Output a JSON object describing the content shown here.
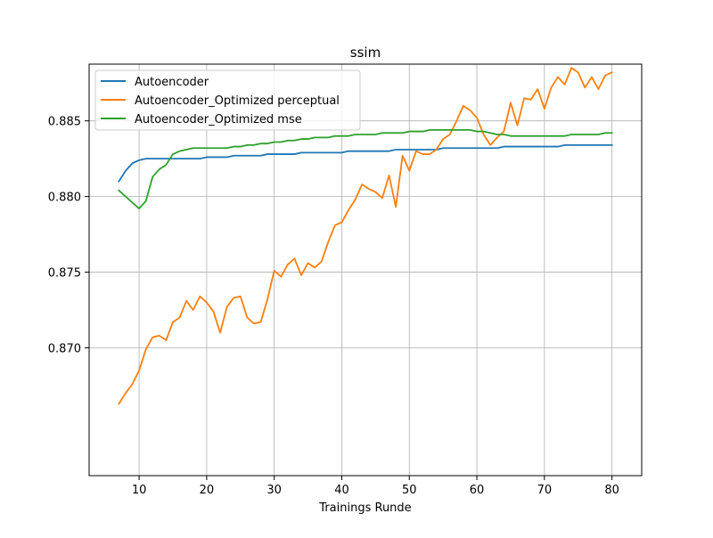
{
  "chart_data": {
    "type": "line",
    "title": "ssim",
    "xlabel": "Trainings Runde",
    "ylabel": "",
    "xlim": [
      2.6,
      84.4
    ],
    "ylim": [
      0.86155,
      0.88875
    ],
    "xticks": [
      10,
      20,
      30,
      40,
      50,
      60,
      70,
      80
    ],
    "yticks": [
      0.87,
      0.875,
      0.88,
      0.885
    ],
    "xtick_labels": [
      "10",
      "20",
      "30",
      "40",
      "50",
      "60",
      "70",
      "80"
    ],
    "ytick_labels": [
      "0.870",
      "0.875",
      "0.880",
      "0.885"
    ],
    "grid": true,
    "legend_position": "top-left",
    "x": [
      7,
      8,
      9,
      10,
      11,
      12,
      13,
      14,
      15,
      16,
      17,
      18,
      19,
      20,
      21,
      22,
      23,
      24,
      25,
      26,
      27,
      28,
      29,
      30,
      31,
      32,
      33,
      34,
      35,
      36,
      37,
      38,
      39,
      40,
      41,
      42,
      43,
      44,
      45,
      46,
      47,
      48,
      49,
      50,
      51,
      52,
      53,
      54,
      55,
      56,
      57,
      58,
      59,
      60,
      61,
      62,
      63,
      64,
      65,
      66,
      67,
      68,
      69,
      70,
      71,
      72,
      73,
      74,
      75,
      76,
      77,
      78,
      79,
      80
    ],
    "series": [
      {
        "name": "Autoencoder",
        "color": "#1f77b4",
        "values": [
          0.881,
          0.8817,
          0.8822,
          0.8824,
          0.8825,
          0.8825,
          0.8825,
          0.8825,
          0.8825,
          0.8825,
          0.8825,
          0.8825,
          0.8825,
          0.8826,
          0.8826,
          0.8826,
          0.8826,
          0.8827,
          0.8827,
          0.8827,
          0.8827,
          0.8827,
          0.8828,
          0.8828,
          0.8828,
          0.8828,
          0.8828,
          0.8829,
          0.8829,
          0.8829,
          0.8829,
          0.8829,
          0.8829,
          0.8829,
          0.883,
          0.883,
          0.883,
          0.883,
          0.883,
          0.883,
          0.883,
          0.8831,
          0.8831,
          0.8831,
          0.8831,
          0.8831,
          0.8831,
          0.8831,
          0.8832,
          0.8832,
          0.8832,
          0.8832,
          0.8832,
          0.8832,
          0.8832,
          0.8832,
          0.8832,
          0.8833,
          0.8833,
          0.8833,
          0.8833,
          0.8833,
          0.8833,
          0.8833,
          0.8833,
          0.8833,
          0.8834,
          0.8834,
          0.8834,
          0.8834,
          0.8834,
          0.8834,
          0.8834,
          0.8834
        ]
      },
      {
        "name": "Autoencoder_Optimized perceptual",
        "color": "#ff7f0e",
        "values": [
          0.8663,
          0.867,
          0.8676,
          0.8685,
          0.8699,
          0.8707,
          0.8708,
          0.8705,
          0.8717,
          0.872,
          0.8731,
          0.8725,
          0.8734,
          0.873,
          0.8724,
          0.871,
          0.8727,
          0.8733,
          0.8734,
          0.872,
          0.8716,
          0.8717,
          0.8732,
          0.8751,
          0.8747,
          0.8755,
          0.8759,
          0.8748,
          0.8756,
          0.8753,
          0.8757,
          0.877,
          0.8781,
          0.8783,
          0.8791,
          0.8798,
          0.8808,
          0.8805,
          0.8803,
          0.8799,
          0.8814,
          0.8793,
          0.8827,
          0.8817,
          0.883,
          0.8828,
          0.8828,
          0.8831,
          0.8838,
          0.8841,
          0.885,
          0.886,
          0.8857,
          0.8852,
          0.8841,
          0.8834,
          0.8839,
          0.8843,
          0.8862,
          0.8847,
          0.8865,
          0.8864,
          0.8871,
          0.8858,
          0.8872,
          0.8879,
          0.8874,
          0.8885,
          0.8882,
          0.8872,
          0.8879,
          0.8871,
          0.888,
          0.8882
        ]
      },
      {
        "name": "Autoencoder_Optimized mse",
        "color": "#2ca02c",
        "values": [
          0.8804,
          0.88,
          0.8796,
          0.8792,
          0.8797,
          0.8813,
          0.8818,
          0.8821,
          0.8828,
          0.883,
          0.8831,
          0.8832,
          0.8832,
          0.8832,
          0.8832,
          0.8832,
          0.8832,
          0.8833,
          0.8833,
          0.8834,
          0.8834,
          0.8835,
          0.8835,
          0.8836,
          0.8836,
          0.8837,
          0.8837,
          0.8838,
          0.8838,
          0.8839,
          0.8839,
          0.8839,
          0.884,
          0.884,
          0.884,
          0.8841,
          0.8841,
          0.8841,
          0.8841,
          0.8842,
          0.8842,
          0.8842,
          0.8842,
          0.8843,
          0.8843,
          0.8843,
          0.8844,
          0.8844,
          0.8844,
          0.8844,
          0.8844,
          0.8844,
          0.8844,
          0.8843,
          0.8843,
          0.8842,
          0.8841,
          0.8841,
          0.884,
          0.884,
          0.884,
          0.884,
          0.884,
          0.884,
          0.884,
          0.884,
          0.884,
          0.8841,
          0.8841,
          0.8841,
          0.8841,
          0.8841,
          0.8842,
          0.8842
        ]
      }
    ]
  }
}
